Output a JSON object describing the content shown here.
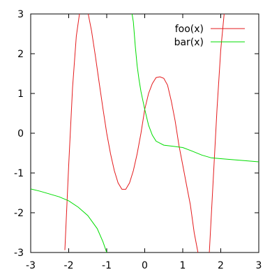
{
  "chart_data": {
    "type": "line",
    "title": "",
    "xlabel": "",
    "ylabel": "",
    "xlim": [
      -3,
      3
    ],
    "ylim": [
      -3,
      3
    ],
    "grid": false,
    "legend_position": "top-right",
    "x_ticks": [
      "-3",
      "-2",
      "-1",
      "0",
      "1",
      "2",
      "3"
    ],
    "y_ticks": [
      "-3",
      "-2",
      "-1",
      "0",
      "1",
      "2",
      "3"
    ],
    "series": [
      {
        "name": "foo(x)",
        "color": "#e41a1c",
        "x": [
          -2.1,
          -2.0,
          -1.9,
          -1.8,
          -1.7,
          -1.6,
          -1.5,
          -1.4,
          -1.3,
          -1.2,
          -1.1,
          -1.0,
          -0.9,
          -0.8,
          -0.7,
          -0.6,
          -0.5,
          -0.4,
          -0.3,
          -0.2,
          -0.1,
          0.0,
          0.1,
          0.2,
          0.3,
          0.4,
          0.5,
          0.6,
          0.7,
          0.8,
          0.9,
          1.0,
          1.1,
          1.2,
          1.3,
          1.4,
          1.7,
          1.8,
          1.9,
          2.0,
          2.1
        ],
        "y": [
          -2.94,
          -0.8,
          1.14,
          2.44,
          3.12,
          3.29,
          3.06,
          2.58,
          1.96,
          1.28,
          0.62,
          0.0,
          -0.52,
          -0.94,
          -1.25,
          -1.41,
          -1.41,
          -1.25,
          -0.94,
          -0.52,
          0.0,
          0.6,
          1.0,
          1.25,
          1.4,
          1.42,
          1.38,
          1.21,
          0.8,
          0.31,
          -0.31,
          -0.8,
          -1.3,
          -1.8,
          -2.5,
          -3.0,
          -3.0,
          -1.2,
          0.6,
          2.1,
          3.1
        ]
      },
      {
        "name": "bar(x)",
        "color": "#00dd00",
        "x": [
          -3.0,
          -2.75,
          -2.5,
          -2.25,
          -2.0,
          -1.75,
          -1.5,
          -1.25,
          -1.1,
          -1.0,
          -0.9,
          -0.35,
          -0.3,
          -0.25,
          -0.2,
          -0.15,
          -0.1,
          0.0,
          0.1,
          0.2,
          0.3,
          0.5,
          0.75,
          1.0,
          1.25,
          1.5,
          1.75,
          2.0,
          2.25,
          2.5,
          2.75,
          3.0
        ],
        "y": [
          -1.4,
          -1.46,
          -1.53,
          -1.6,
          -1.7,
          -1.86,
          -2.07,
          -2.4,
          -2.73,
          -3.0,
          -3.3,
          3.1,
          2.8,
          2.2,
          1.7,
          1.35,
          1.05,
          0.6,
          0.2,
          -0.05,
          -0.2,
          -0.3,
          -0.33,
          -0.36,
          -0.45,
          -0.55,
          -0.62,
          -0.64,
          -0.66,
          -0.68,
          -0.7,
          -0.72
        ]
      }
    ]
  }
}
